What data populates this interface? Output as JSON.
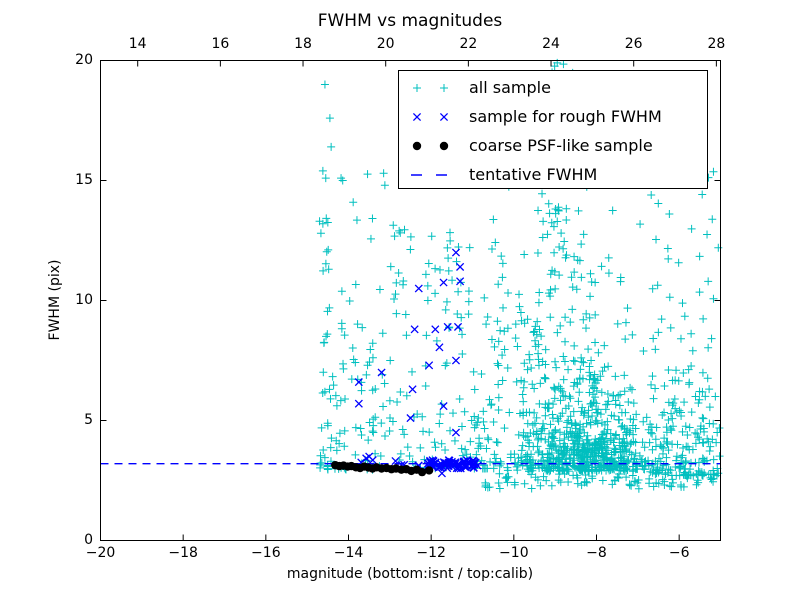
{
  "chart_data": {
    "type": "scatter",
    "title": "FWHM vs magnitudes",
    "xlabel": "magnitude (bottom:isnt / top:calib)",
    "ylabel": "FWHM (pix)",
    "xlim": [
      -20,
      -5
    ],
    "ylim": [
      0,
      20
    ],
    "grid": false,
    "legend_position": "upper center-right",
    "seed": 20240915,
    "x_axis_bottom": {
      "ticks": [
        {
          "v": -20,
          "label": "−20"
        },
        {
          "v": -18,
          "label": "−18"
        },
        {
          "v": -16,
          "label": "−16"
        },
        {
          "v": -14,
          "label": "−14"
        },
        {
          "v": -12,
          "label": "−12"
        },
        {
          "v": -10,
          "label": "−10"
        },
        {
          "v": -8,
          "label": "−8"
        },
        {
          "v": -6,
          "label": "−6"
        }
      ]
    },
    "x_axis_top": {
      "offset": 33.1,
      "ticks": [
        {
          "v": 14,
          "label": "14"
        },
        {
          "v": 16,
          "label": "16"
        },
        {
          "v": 18,
          "label": "18"
        },
        {
          "v": 20,
          "label": "20"
        },
        {
          "v": 22,
          "label": "22"
        },
        {
          "v": 24,
          "label": "24"
        },
        {
          "v": 26,
          "label": "26"
        },
        {
          "v": 28,
          "label": "28"
        }
      ]
    },
    "y_axis": {
      "ticks": [
        {
          "v": 0,
          "label": "0"
        },
        {
          "v": 5,
          "label": "5"
        },
        {
          "v": 10,
          "label": "10"
        },
        {
          "v": 15,
          "label": "15"
        },
        {
          "v": 20,
          "label": "20"
        }
      ]
    },
    "colors": {
      "all_sample": "#00bfbf",
      "rough_fwhm": "#0000ff",
      "psf_like": "#000000",
      "tentative_line": "#0000ff"
    },
    "tentative_fwhm_value": 3.2,
    "series": [
      {
        "name": "all sample",
        "marker": "plus",
        "color": "#00bfbf",
        "z": 0,
        "points": [
          [
            -14.57,
            19.0
          ],
          [
            -14.45,
            17.6
          ],
          [
            -14.42,
            16.4
          ],
          [
            -14.62,
            15.4
          ],
          [
            -14.55,
            15.1
          ],
          [
            -14.18,
            15.1
          ],
          [
            -14.14,
            15.0
          ],
          [
            -13.15,
            15.3
          ],
          [
            -13.12,
            14.8
          ],
          [
            -14.7,
            13.3
          ],
          [
            -14.62,
            13.2
          ],
          [
            -14.5,
            13.25
          ],
          [
            -8.95,
            19.9
          ],
          [
            -8.8,
            19.85
          ],
          [
            -7.7,
            19.3
          ]
        ],
        "clusters": [
          {
            "n": 9,
            "mag": {
              "dist": "uniform",
              "min": -14.68,
              "max": -14.42
            },
            "fwhm": {
              "dist": "uniform",
              "min": 9.5,
              "max": 13.5
            }
          },
          {
            "n": 95,
            "mag": {
              "dist": "uniform",
              "min": -14.7,
              "max": -13.1
            },
            "fwhm": {
              "dist": "power",
              "base": 2.95,
              "range": 6.2,
              "exp": 2.2
            }
          },
          {
            "n": 10,
            "mag": {
              "dist": "uniform",
              "min": -14.35,
              "max": -12.9
            },
            "fwhm": {
              "dist": "uniform",
              "min": 9.8,
              "max": 15.5
            }
          },
          {
            "n": 95,
            "mag": {
              "dist": "uniform",
              "min": -13.1,
              "max": -11.1
            },
            "fwhm": {
              "dist": "power",
              "base": 3.0,
              "range": 10,
              "exp": 2.5
            }
          },
          {
            "n": 65,
            "mag": {
              "dist": "uniform",
              "min": -11.1,
              "max": -10.3
            },
            "fwhm": {
              "dist": "power",
              "base": 3.0,
              "range": 11,
              "exp": 2.5
            }
          },
          {
            "n": 700,
            "mag": {
              "dist": "normal",
              "mu": -8.3,
              "sigma": 0.85,
              "min": -10.3,
              "max": -6.2
            },
            "fwhm": {
              "dist": "exp",
              "base": 2.88,
              "scale": 1.4,
              "max": 12
            }
          },
          {
            "n": 90,
            "mag": {
              "dist": "uniform",
              "min": -10.4,
              "max": -8.0
            },
            "fwhm": {
              "dist": "uniform",
              "min": 6.5,
              "max": 12
            }
          },
          {
            "n": 48,
            "mag": {
              "dist": "normal",
              "mu": -8.9,
              "sigma": 0.3,
              "min": -9.6,
              "max": -8.2
            },
            "fwhm": {
              "dist": "uniform",
              "min": 12,
              "max": 19.8
            }
          },
          {
            "n": 30,
            "mag": {
              "dist": "uniform",
              "min": -10.4,
              "max": -7.9
            },
            "fwhm": {
              "dist": "uniform",
              "min": 14,
              "max": 19.9
            }
          },
          {
            "n": 45,
            "mag": {
              "dist": "uniform",
              "min": -7.9,
              "max": -5.05
            },
            "fwhm": {
              "dist": "uniform",
              "min": 7,
              "max": 16
            }
          },
          {
            "n": 150,
            "mag": {
              "dist": "uniform",
              "min": -6.7,
              "max": -5.02
            },
            "fwhm": {
              "dist": "power",
              "base": 2.7,
              "range": 4.5,
              "exp": 1.8
            }
          },
          {
            "n": 95,
            "mag": {
              "dist": "uniform",
              "min": -10.7,
              "max": -5.05
            },
            "fwhm": {
              "dist": "uniform",
              "min": 2.15,
              "max": 2.95
            }
          },
          {
            "n": 8,
            "mag": {
              "dist": "uniform",
              "min": -13.0,
              "max": -11.0
            },
            "fwhm": {
              "dist": "uniform",
              "min": 10,
              "max": 13.5
            }
          }
        ]
      },
      {
        "name": "sample for rough FWHM",
        "marker": "x",
        "color": "#0000ff",
        "z": 1,
        "points": [
          [
            -11.4,
            12.0
          ],
          [
            -11.3,
            11.4
          ],
          [
            -11.3,
            10.8
          ],
          [
            -11.7,
            10.75
          ],
          [
            -12.3,
            10.5
          ],
          [
            -12.4,
            8.8
          ],
          [
            -11.9,
            8.8
          ],
          [
            -11.6,
            8.9
          ],
          [
            -11.35,
            8.9
          ],
          [
            -11.8,
            8.05
          ],
          [
            -12.05,
            7.3
          ],
          [
            -11.4,
            7.5
          ],
          [
            -13.2,
            7.0
          ],
          [
            -13.75,
            6.6
          ],
          [
            -13.75,
            5.7
          ],
          [
            -12.45,
            6.3
          ],
          [
            -12.5,
            5.1
          ],
          [
            -11.7,
            5.6
          ],
          [
            -11.4,
            4.5
          ],
          [
            -11.74,
            2.8
          ],
          [
            -13.5,
            3.5
          ]
        ],
        "clusters": [
          {
            "n": 72,
            "mag": {
              "dist": "uniform",
              "min": -12.1,
              "max": -10.85
            },
            "fwhm": {
              "dist": "uniform",
              "min": 3.0,
              "max": 3.35
            }
          },
          {
            "n": 8,
            "mag": {
              "dist": "uniform",
              "min": -13.7,
              "max": -12.1
            },
            "fwhm": {
              "dist": "uniform",
              "min": 3.05,
              "max": 3.45
            }
          }
        ]
      },
      {
        "name": "coarse PSF-like sample",
        "marker": "dot",
        "color": "#000000",
        "z": 3,
        "points": [
          [
            -14.32,
            3.14
          ],
          [
            -14.22,
            3.1
          ],
          [
            -14.12,
            3.12
          ],
          [
            -14.02,
            3.08
          ],
          [
            -13.93,
            3.1
          ],
          [
            -13.82,
            3.05
          ],
          [
            -13.72,
            3.02
          ],
          [
            -13.62,
            3.08
          ],
          [
            -13.52,
            3.04
          ],
          [
            -13.42,
            3.0
          ],
          [
            -13.32,
            3.05
          ],
          [
            -13.2,
            3.0
          ],
          [
            -13.08,
            3.02
          ],
          [
            -12.96,
            2.97
          ],
          [
            -12.85,
            3.0
          ],
          [
            -12.72,
            2.95
          ],
          [
            -12.6,
            2.97
          ],
          [
            -12.48,
            2.9
          ],
          [
            -12.35,
            2.95
          ],
          [
            -12.22,
            2.85
          ],
          [
            -12.05,
            2.92
          ]
        ],
        "clusters": []
      },
      {
        "name": "tentative FWHM",
        "marker": "dashed-line",
        "color": "#0000ff",
        "z": 2,
        "y": 3.2
      }
    ]
  }
}
